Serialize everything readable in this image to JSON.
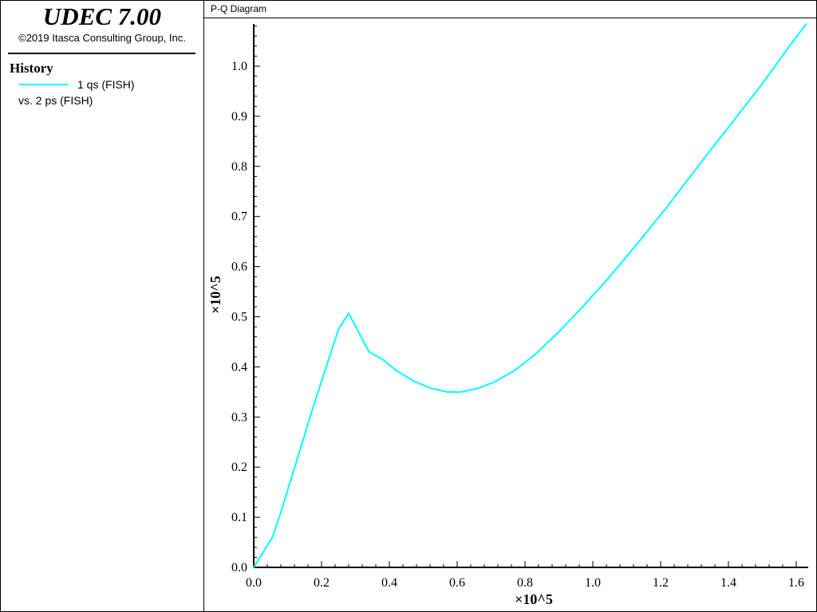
{
  "app": {
    "title": "UDEC 7.00",
    "copyright": "©2019 Itasca Consulting Group, Inc."
  },
  "legend": {
    "heading": "History",
    "series_label": "1 qs (FISH)",
    "vs_label": "vs. 2 ps (FISH)"
  },
  "plot": {
    "title": "P-Q Diagram"
  },
  "chart_data": {
    "type": "line",
    "title": "P-Q Diagram",
    "xlabel": "×10^5",
    "ylabel": "×10^5",
    "xlim": [
      0,
      1.63
    ],
    "ylim": [
      0,
      1.09
    ],
    "xticks": [
      "0.0",
      "0.2",
      "0.4",
      "0.6",
      "0.8",
      "1.0",
      "1.2",
      "1.4",
      "1.6"
    ],
    "yticks": [
      "0.0",
      "0.1",
      "0.2",
      "0.3",
      "0.4",
      "0.5",
      "0.6",
      "0.7",
      "0.8",
      "0.9",
      "1.0"
    ],
    "grid": false,
    "legend_position": "left panel",
    "series": [
      {
        "name": "1 qs (FISH)",
        "color": "#00ffff",
        "x": [
          0,
          0.055,
          0.08,
          0.13,
          0.18,
          0.25,
          0.28,
          0.34,
          0.38,
          0.42,
          0.47,
          0.52,
          0.57,
          0.61,
          0.66,
          0.71,
          0.77,
          0.83,
          0.9,
          0.97,
          1.05,
          1.13,
          1.22,
          1.31,
          1.4,
          1.5,
          1.58,
          1.63
        ],
        "y": [
          0,
          0.06,
          0.11,
          0.22,
          0.33,
          0.475,
          0.507,
          0.43,
          0.415,
          0.393,
          0.372,
          0.358,
          0.35,
          0.35,
          0.357,
          0.37,
          0.393,
          0.425,
          0.47,
          0.52,
          0.58,
          0.645,
          0.72,
          0.8,
          0.878,
          0.965,
          1.04,
          1.085
        ]
      }
    ]
  }
}
